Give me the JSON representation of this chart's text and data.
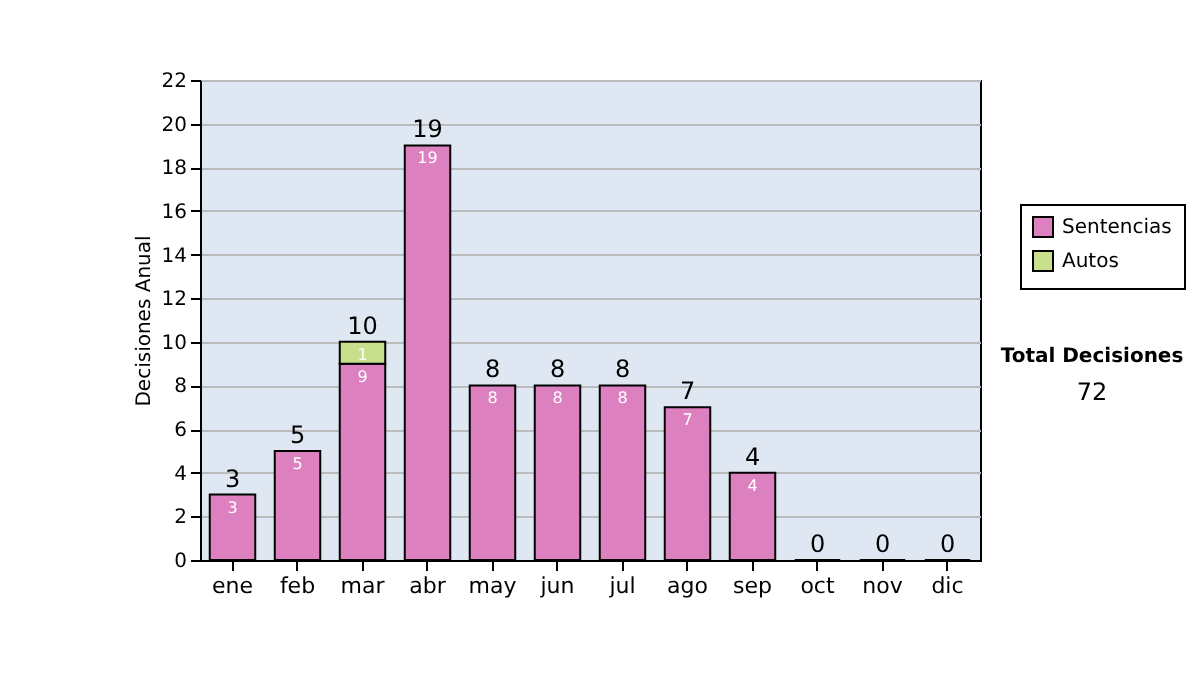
{
  "chart_data": {
    "type": "bar",
    "stacked": true,
    "ylabel": "Decisiones Anual",
    "categories": [
      "ene",
      "feb",
      "mar",
      "abr",
      "may",
      "jun",
      "jul",
      "ago",
      "sep",
      "oct",
      "nov",
      "dic"
    ],
    "series": [
      {
        "name": "Sentencias",
        "color": "#dd80c0",
        "values": [
          3,
          5,
          9,
          19,
          8,
          8,
          8,
          7,
          4,
          0,
          0,
          0
        ],
        "value_labels": [
          "3",
          "5",
          "9",
          "19",
          "8",
          "8",
          "8",
          "7",
          "4",
          null,
          null,
          null
        ]
      },
      {
        "name": "Autos",
        "color": "#c8e08c",
        "values": [
          null,
          null,
          1,
          null,
          null,
          null,
          null,
          null,
          null,
          null,
          null,
          null
        ],
        "value_labels": [
          null,
          null,
          "1",
          null,
          null,
          null,
          null,
          null,
          null,
          null,
          null,
          null
        ]
      }
    ],
    "totals": [
      "3",
      "5",
      "10",
      "19",
      "8",
      "8",
      "8",
      "7",
      "4",
      "0",
      "0",
      "0"
    ],
    "ylim": [
      0,
      22
    ],
    "yticks": [
      0,
      2,
      4,
      6,
      8,
      10,
      12,
      14,
      16,
      18,
      20,
      22
    ],
    "grid": "y",
    "legend": "right",
    "annotations": [
      "Total Decisiones",
      "72"
    ]
  }
}
